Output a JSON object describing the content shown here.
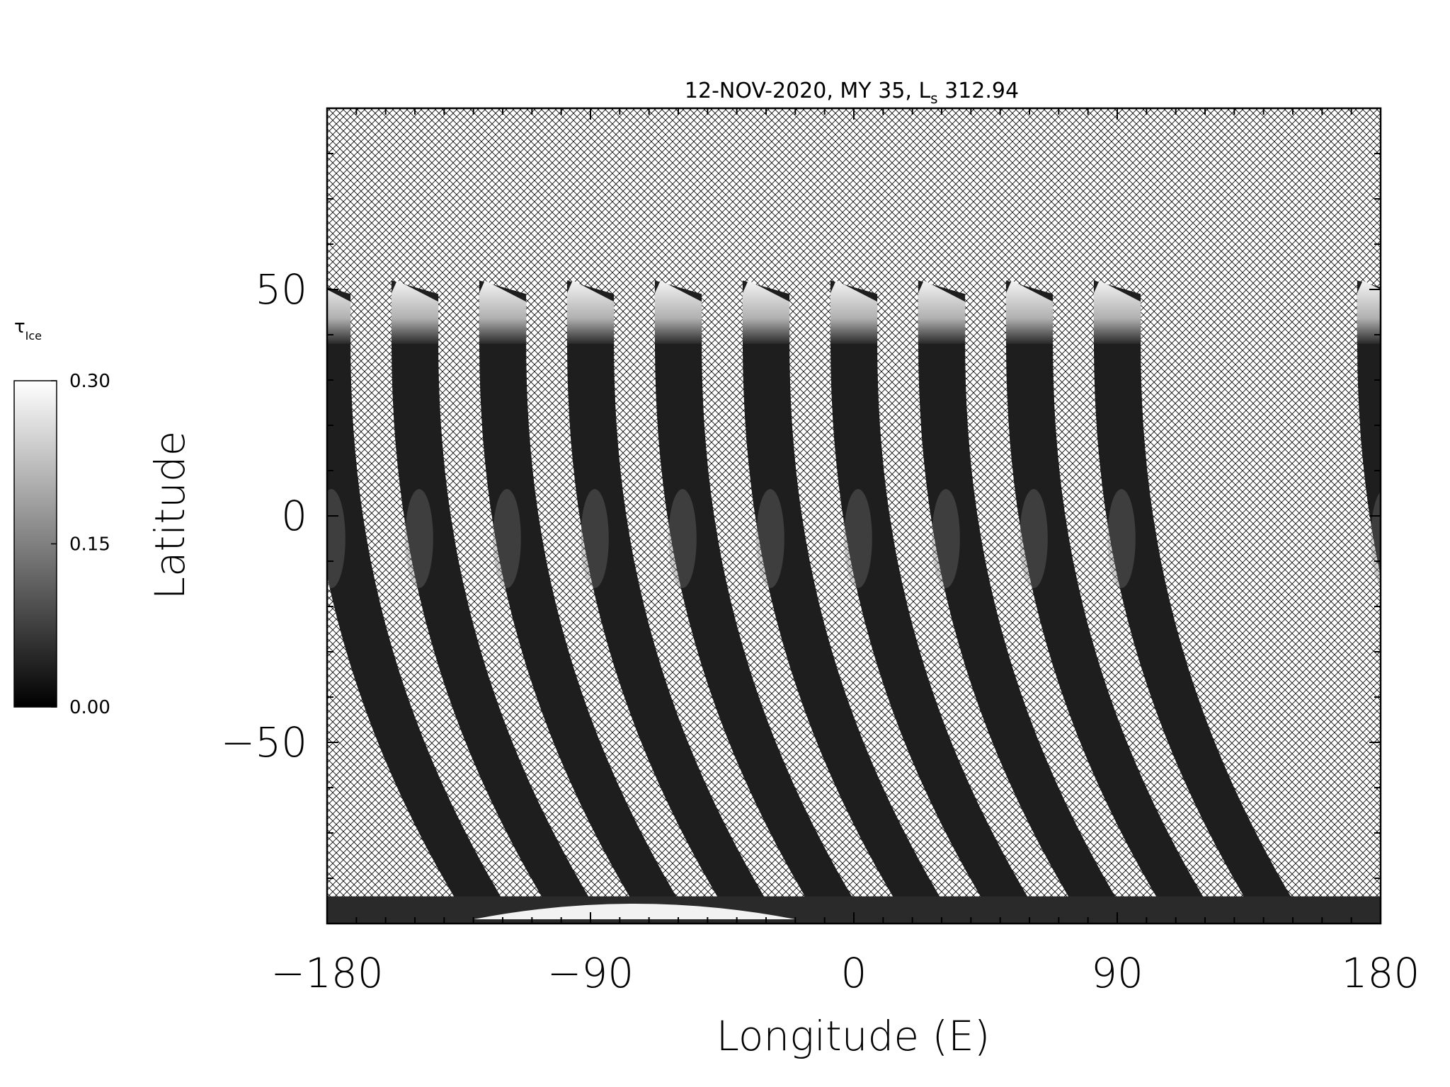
{
  "chart_data": {
    "type": "heatmap",
    "title": "12-NOV-2020, MY 35,",
    "title_ls_symbol": "L",
    "title_ls_subscript": "s",
    "title_ls_value": "312.94",
    "xlabel": "Longitude (E)",
    "ylabel": "Latitude",
    "xlim": [
      -180,
      180
    ],
    "ylim": [
      -90,
      90
    ],
    "x_ticks": [
      -180,
      -90,
      0,
      90,
      180
    ],
    "x_tick_labels": [
      "−180",
      "−90",
      "0",
      "90",
      "180"
    ],
    "y_ticks": [
      -50,
      0,
      50
    ],
    "y_tick_labels": [
      "−50",
      "0",
      "50"
    ],
    "x_minor_step": 10,
    "y_minor_step": 10,
    "colormap": "grayscale",
    "no_data_fill": "crosshatch",
    "colorbar": {
      "label_symbol": "τ",
      "label_subscript": "Ice",
      "min": 0.0,
      "max": 0.3,
      "tick_values": [
        0.0,
        0.15,
        0.3
      ],
      "tick_labels": [
        "0.00",
        "0.15",
        "0.30"
      ]
    },
    "swaths": [
      {
        "lon_center": -180
      },
      {
        "lon_center": -150
      },
      {
        "lon_center": -120
      },
      {
        "lon_center": -90
      },
      {
        "lon_center": -60
      },
      {
        "lon_center": -30
      },
      {
        "lon_center": 0
      },
      {
        "lon_center": 30
      },
      {
        "lon_center": 60
      },
      {
        "lon_center": 90
      },
      {
        "lon_center": 180
      }
    ],
    "south_polar_bright_region": {
      "lon_range": [
        -130,
        -20
      ],
      "lat_range": [
        -90,
        -85
      ]
    }
  }
}
